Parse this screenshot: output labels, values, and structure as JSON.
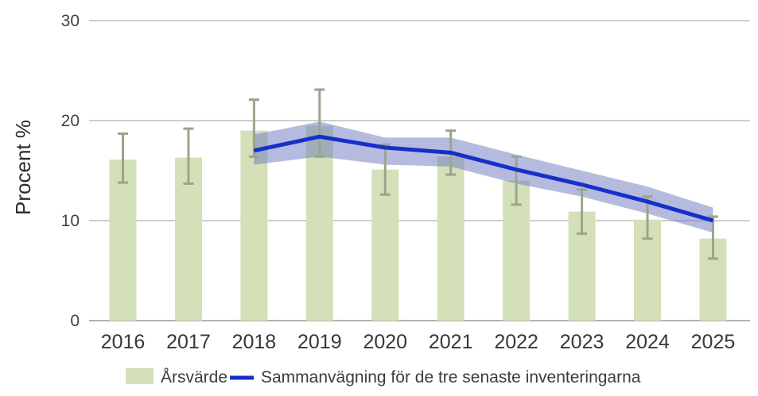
{
  "chart_data": {
    "type": "bar",
    "title": "",
    "xlabel": "",
    "ylabel": "Procent %",
    "ylim": [
      0,
      30
    ],
    "yticks": [
      0,
      10,
      20,
      30
    ],
    "grid": true,
    "legend_position": "bottom",
    "categories": [
      "2016",
      "2017",
      "2018",
      "2019",
      "2020",
      "2021",
      "2022",
      "2023",
      "2024",
      "2025"
    ],
    "series": [
      {
        "name": "Årsvärde",
        "type": "bar",
        "color": "#d4e0b8",
        "error_color": "#9aa58a",
        "values": [
          16.1,
          16.3,
          19.0,
          19.5,
          15.1,
          16.4,
          14.0,
          10.9,
          10.1,
          8.2
        ],
        "ci_high": [
          18.7,
          19.2,
          22.1,
          23.1,
          17.6,
          19.0,
          16.4,
          13.1,
          12.4,
          10.4
        ],
        "ci_low": [
          13.8,
          13.7,
          16.4,
          16.4,
          12.6,
          14.6,
          11.6,
          8.7,
          8.2,
          6.2
        ]
      },
      {
        "name": "Sammanvägning för de tre senaste inventeringarna",
        "type": "line",
        "color": "#1530c9",
        "band_color": "#6a78c0",
        "start_category": "2018",
        "start_index": 2,
        "values": [
          17.0,
          18.4,
          17.3,
          16.8,
          15.1,
          13.6,
          11.9,
          10.0
        ],
        "band_high": [
          18.6,
          19.9,
          18.3,
          18.3,
          16.6,
          15.0,
          13.4,
          11.3
        ],
        "band_low": [
          15.6,
          16.4,
          15.6,
          15.4,
          13.7,
          12.4,
          10.7,
          8.8
        ]
      }
    ],
    "colors": {
      "gridline": "#cecece",
      "baseline": "#b1b1b1",
      "tick_text": "#424242",
      "axis_title_text": "#2b2b2b"
    }
  }
}
